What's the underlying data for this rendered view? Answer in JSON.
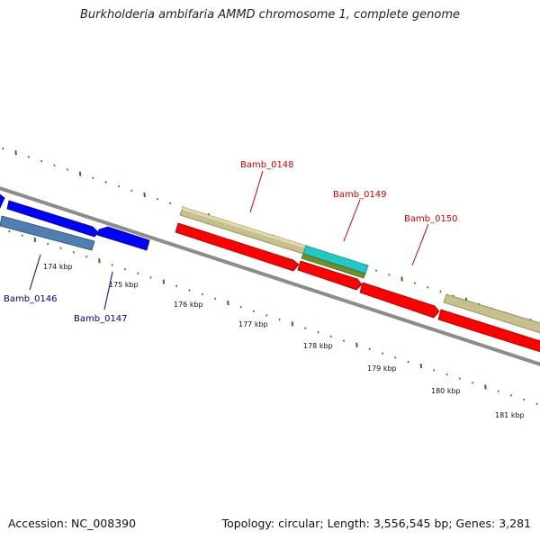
{
  "title": "Burkholderia ambifaria AMMD chromosome 1, complete genome",
  "footer": {
    "accession": "Accession: NC_008390",
    "summary": "Topology: circular; Length: 3,556,545 bp; Genes: 3,281"
  },
  "colors": {
    "backbone": "#8c8c8c",
    "tick": "#2a7a1a",
    "forward_gene": "#0000ff",
    "forward_gene_alt": "#4f7fb0",
    "reverse_gene": "#ff0000",
    "khaki_feature": "#c8c08a",
    "cyan_feature": "#22c8c8",
    "olive_feature": "#6f8f2a",
    "label_blue": "#00008b",
    "label_red": "#cc0000"
  },
  "scale_labels": [
    "174 kbp",
    "175 kbp",
    "176 kbp",
    "177 kbp",
    "178 kbp",
    "179 kbp",
    "180 kbp",
    "181 kbp"
  ],
  "gene_labels": [
    "Bamb_0146",
    "Bamb_0147",
    "Bamb_0148",
    "Bamb_0149",
    "Bamb_0150"
  ]
}
